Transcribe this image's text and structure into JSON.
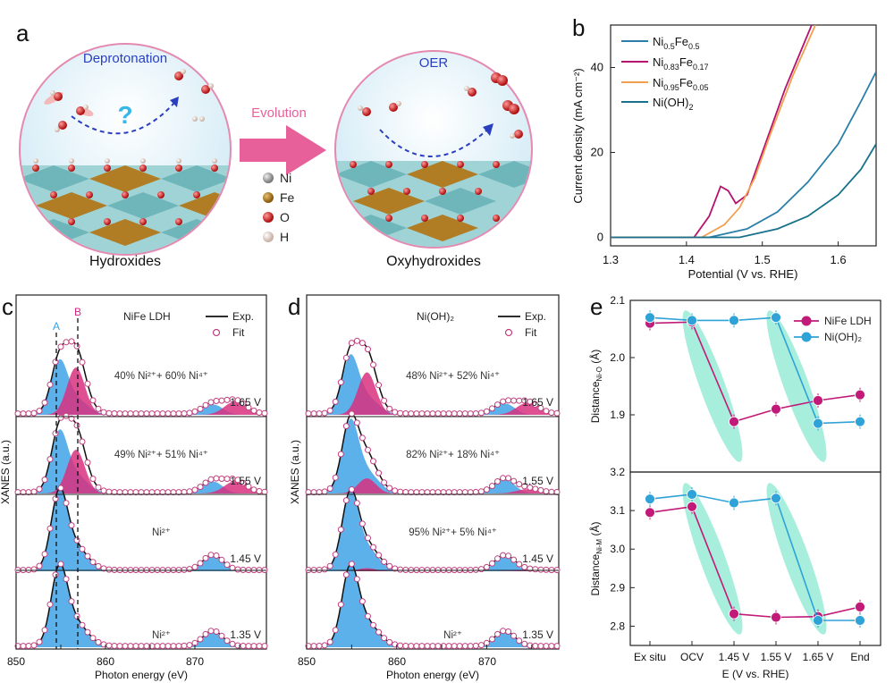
{
  "panels": {
    "a": {
      "letter": "a",
      "left_caption": "Hydroxides",
      "right_caption": "Oxyhydroxides",
      "left_title": "Deprotonation",
      "right_title": "OER",
      "arrow_label": "Evolution",
      "question": "?",
      "legend": [
        "Ni",
        "Fe",
        "O",
        "H"
      ],
      "colors": {
        "ni": "#9a9a9a",
        "fe": "#a0741c",
        "o": "#cc1f1f",
        "h": "#e8d6cc",
        "accent": "#e8609a",
        "title": "#2a3fc0",
        "sphere": "#d7eef8"
      }
    },
    "b": {
      "letter": "b",
      "xlabel": "Potential (V vs. RHE)",
      "ylabel": "Current density (mA cm⁻²)",
      "legend": [
        {
          "base": "Ni",
          "sub1": "0.5",
          "mid": "Fe",
          "sub2": "0.5",
          "color": "#2a7fa8"
        },
        {
          "base": "Ni",
          "sub1": "0.83",
          "mid": "Fe",
          "sub2": "0.17",
          "color": "#b5136f"
        },
        {
          "base": "Ni",
          "sub1": "0.95",
          "mid": "Fe",
          "sub2": "0.05",
          "color": "#f0a050"
        },
        {
          "base": "Ni(OH)",
          "sub1": "2",
          "mid": "",
          "sub2": "",
          "color": "#17718a"
        }
      ]
    },
    "c": {
      "letter": "c",
      "title": "NiFe LDH",
      "legend_exp": "Exp.",
      "legend_fit": "Fit",
      "peak_a": "A",
      "peak_b": "B",
      "xlabel": "Photon energy (eV)",
      "ylabel": "XANES (a.u.)",
      "xticks": [
        "850",
        "860",
        "870"
      ],
      "rows": [
        {
          "voltage": "1.65 V",
          "composition": "40% Ni²⁺+ 60% Ni⁴⁺"
        },
        {
          "voltage": "1.55 V",
          "composition": "49% Ni²⁺+ 51% Ni⁴⁺"
        },
        {
          "voltage": "1.45 V",
          "composition": "Ni²⁺"
        },
        {
          "voltage": "1.35 V",
          "composition": "Ni²⁺"
        }
      ]
    },
    "d": {
      "letter": "d",
      "title": "Ni(OH)₂",
      "legend_exp": "Exp.",
      "legend_fit": "Fit",
      "xlabel": "Photon energy (eV)",
      "ylabel": "XANES (a.u.)",
      "xticks": [
        "850",
        "860",
        "870"
      ],
      "rows": [
        {
          "voltage": "1.65 V",
          "composition": "48% Ni²⁺+ 52% Ni⁴⁺"
        },
        {
          "voltage": "1.55 V",
          "composition": "82% Ni²⁺+ 18% Ni⁴⁺"
        },
        {
          "voltage": "1.45 V",
          "composition": "95% Ni²⁺+ 5% Ni⁴⁺"
        },
        {
          "voltage": "1.35 V",
          "composition": "Ni²⁺"
        }
      ]
    },
    "e": {
      "letter": "e",
      "xlabel": "E (V vs. RHE)",
      "ylabel_top": "Distance",
      "ylabel_top_sub": "Ni-O",
      "ylabel_top_unit": " (Å)",
      "ylabel_bottom": "Distance",
      "ylabel_bottom_sub": "Ni-M",
      "ylabel_bottom_unit": " (Å)",
      "legend": [
        "NiFe LDH",
        "Ni(OH)₂"
      ]
    }
  },
  "chart_data": [
    {
      "type": "line",
      "panel": "b",
      "xlabel": "Potential (V vs. RHE)",
      "ylabel": "Current density (mA cm⁻²)",
      "xlim": [
        1.3,
        1.65
      ],
      "ylim": [
        -2,
        50
      ],
      "xticks": [
        1.3,
        1.4,
        1.5,
        1.6
      ],
      "yticks": [
        0,
        20,
        40
      ],
      "series": [
        {
          "name": "Ni0.5Fe0.5",
          "color": "#2a7fa8",
          "x": [
            1.3,
            1.43,
            1.48,
            1.52,
            1.56,
            1.6,
            1.63,
            1.65
          ],
          "y": [
            0,
            0,
            2,
            6,
            13,
            22,
            32,
            39
          ]
        },
        {
          "name": "Ni0.83Fe0.17",
          "color": "#b5136f",
          "x": [
            1.3,
            1.41,
            1.43,
            1.445,
            1.455,
            1.465,
            1.48,
            1.5,
            1.53,
            1.565
          ],
          "y": [
            0,
            0,
            5,
            12,
            11,
            8,
            10,
            20,
            35,
            50
          ]
        },
        {
          "name": "Ni0.95Fe0.05",
          "color": "#f0a050",
          "x": [
            1.3,
            1.42,
            1.45,
            1.47,
            1.49,
            1.51,
            1.54,
            1.57
          ],
          "y": [
            0,
            0,
            3,
            7,
            14,
            24,
            38,
            50
          ]
        },
        {
          "name": "Ni(OH)2",
          "color": "#17718a",
          "x": [
            1.3,
            1.47,
            1.52,
            1.56,
            1.6,
            1.63,
            1.65
          ],
          "y": [
            0,
            0,
            2,
            5,
            10,
            16,
            22
          ]
        }
      ]
    },
    {
      "type": "scatter",
      "panel": "e-top",
      "categories": [
        "Ex situ",
        "OCV",
        "1.45 V",
        "1.55 V",
        "1.65 V",
        "End"
      ],
      "ylim": [
        1.8,
        2.1
      ],
      "yticks": [
        1.9,
        2.0,
        2.1
      ],
      "series": [
        {
          "name": "NiFe LDH",
          "color": "#c21a78",
          "values": [
            2.06,
            2.062,
            1.888,
            1.91,
            1.925,
            1.935
          ]
        },
        {
          "name": "Ni(OH)2",
          "color": "#2fa2d8",
          "values": [
            2.07,
            2.065,
            2.065,
            2.07,
            1.885,
            1.888
          ]
        }
      ]
    },
    {
      "type": "scatter",
      "panel": "e-bottom",
      "categories": [
        "Ex situ",
        "OCV",
        "1.45 V",
        "1.55 V",
        "1.65 V",
        "End"
      ],
      "ylim": [
        2.75,
        3.2
      ],
      "yticks": [
        2.8,
        2.9,
        3.0,
        3.1,
        3.2
      ],
      "series": [
        {
          "name": "NiFe LDH",
          "color": "#c21a78",
          "values": [
            3.095,
            3.11,
            2.832,
            2.823,
            2.825,
            2.85
          ]
        },
        {
          "name": "Ni(OH)2",
          "color": "#2fa2d8",
          "values": [
            3.13,
            3.142,
            3.12,
            3.132,
            2.815,
            2.815
          ]
        }
      ]
    }
  ]
}
